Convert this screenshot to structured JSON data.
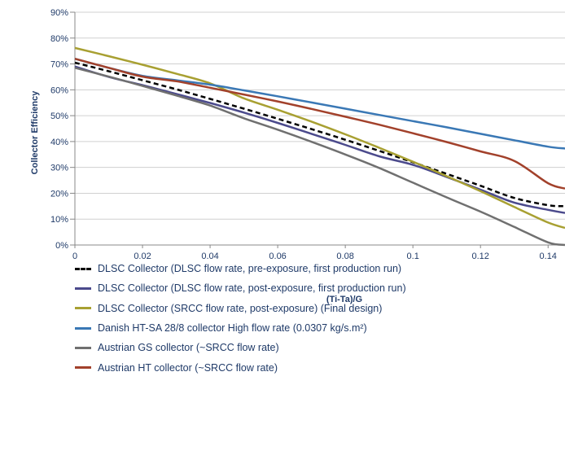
{
  "chart_data": {
    "type": "line",
    "title": "",
    "xlabel": "(Ti-Ta)/G",
    "ylabel": "Collector Efficiency",
    "xlim": [
      0,
      0.145
    ],
    "ylim": [
      0,
      0.9
    ],
    "x_ticks": [
      0,
      0.02,
      0.04,
      0.06,
      0.08,
      0.1,
      0.12,
      0.14
    ],
    "x_tick_labels": [
      "0",
      "0.02",
      "0.04",
      "0.06",
      "0.08",
      "0.1",
      "0.12",
      "0.14"
    ],
    "y_ticks": [
      0,
      0.1,
      0.2,
      0.3,
      0.4,
      0.5,
      0.6,
      0.7,
      0.8,
      0.9
    ],
    "y_tick_labels": [
      "0%",
      "10%",
      "20%",
      "30%",
      "40%",
      "50%",
      "60%",
      "70%",
      "80%",
      "90%"
    ],
    "grid": "horizontal",
    "legend_position": "bottom",
    "x": [
      0,
      0.01,
      0.02,
      0.03,
      0.04,
      0.05,
      0.06,
      0.07,
      0.08,
      0.09,
      0.1,
      0.11,
      0.12,
      0.13,
      0.14,
      0.145
    ],
    "series": [
      {
        "name": "DLSC Collector (DLSC flow rate, pre-exposure, first production run)",
        "color": "#000000",
        "dashed": true,
        "values": [
          0.705,
          0.672,
          0.637,
          0.602,
          0.565,
          0.527,
          0.488,
          0.448,
          0.407,
          0.364,
          0.32,
          0.275,
          0.229,
          0.182,
          0.154,
          0.15
        ]
      },
      {
        "name": "DLSC Collector (DLSC flow rate, post-exposure, first production run)",
        "color": "#4b4a8c",
        "dashed": false,
        "values": [
          0.69,
          0.65,
          0.618,
          0.584,
          0.549,
          0.512,
          0.472,
          0.43,
          0.387,
          0.343,
          0.31,
          0.263,
          0.214,
          0.164,
          0.136,
          0.124
        ]
      },
      {
        "name": "DLSC Collector (SRCC flow rate, post-exposure) (Final design)",
        "color": "#a8a032",
        "dashed": false,
        "values": [
          0.762,
          0.73,
          0.697,
          0.662,
          0.625,
          0.567,
          0.523,
          0.477,
          0.428,
          0.376,
          0.322,
          0.266,
          0.208,
          0.147,
          0.087,
          0.066
        ]
      },
      {
        "name": "Danish HT-SA 28/8 collector High flow rate (0.0307 kg/s.m²)",
        "color": "#3a78b5",
        "dashed": false,
        "values": [
          0.72,
          0.685,
          0.654,
          0.637,
          0.62,
          0.598,
          0.575,
          0.551,
          0.527,
          0.503,
          0.479,
          0.455,
          0.43,
          0.405,
          0.38,
          0.373
        ]
      },
      {
        "name": "Austrian GS collector (~SRCC flow rate)",
        "color": "#707070",
        "dashed": false,
        "values": [
          0.685,
          0.651,
          0.615,
          0.578,
          0.539,
          0.49,
          0.446,
          0.399,
          0.35,
          0.298,
          0.241,
          0.184,
          0.129,
          0.07,
          0.01,
          0.0
        ]
      },
      {
        "name": "Austrian HT collector (~SRCC flow rate)",
        "color": "#a2412b",
        "dashed": false,
        "values": [
          0.72,
          0.685,
          0.651,
          0.633,
          0.608,
          0.582,
          0.555,
          0.526,
          0.496,
          0.465,
          0.432,
          0.398,
          0.362,
          0.325,
          0.239,
          0.218
        ]
      }
    ]
  }
}
